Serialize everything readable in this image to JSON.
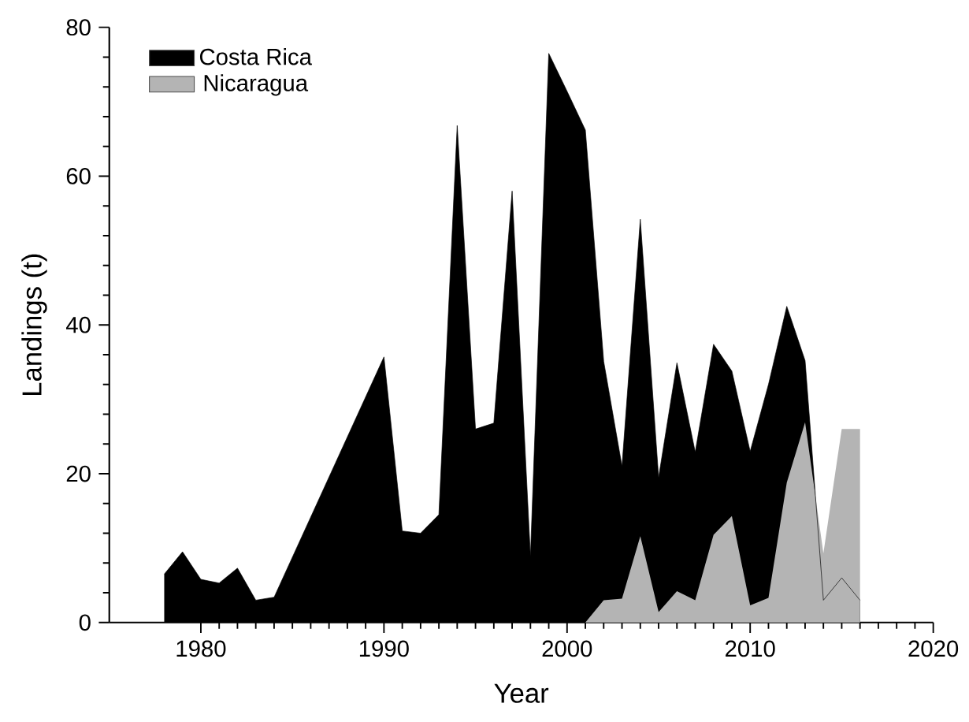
{
  "chart_data": {
    "type": "area",
    "xlabel": "Year",
    "ylabel": "Landings (t)",
    "xlim": [
      1975,
      2020
    ],
    "xticks": [
      1980,
      1990,
      2000,
      2010,
      2020
    ],
    "ylim": [
      0,
      80
    ],
    "yticks": [
      0,
      20,
      40,
      60,
      80
    ],
    "legend": "top left",
    "grid": false,
    "series": [
      {
        "name": "Costa Rica",
        "color": "#000000",
        "x": [
          1978,
          1979,
          1980,
          1981,
          1982,
          1983,
          1984,
          1990,
          1991,
          1992,
          1993,
          1994,
          1995,
          1996,
          1997,
          1998,
          1999,
          2000,
          2001,
          2002,
          2003,
          2004,
          2005,
          2006,
          2007,
          2008,
          2009,
          2010,
          2011,
          2012,
          2013,
          2014,
          2015,
          2016
        ],
        "values": [
          6.5,
          9.5,
          5.8,
          5.3,
          7.3,
          3,
          3.4,
          35.7,
          12.3,
          12,
          14.5,
          66.8,
          26,
          26.8,
          58,
          8.9,
          76.5,
          71.4,
          66.2,
          35.1,
          21,
          54.2,
          19.5,
          34.9,
          22.9,
          37.4,
          33.8,
          23,
          32,
          42.5,
          35.2,
          3,
          6,
          3
        ]
      },
      {
        "name": "Nicaragua",
        "color": "#b4b4b4",
        "x": [
          2001,
          2002,
          2003,
          2004,
          2005,
          2006,
          2007,
          2008,
          2009,
          2010,
          2011,
          2012,
          2013,
          2014,
          2015,
          2016
        ],
        "values": [
          0,
          3,
          3.2,
          11.6,
          1.4,
          4.2,
          3,
          11.8,
          14.3,
          2.3,
          3.3,
          18.8,
          26.9,
          9.3,
          26,
          26
        ]
      }
    ]
  }
}
